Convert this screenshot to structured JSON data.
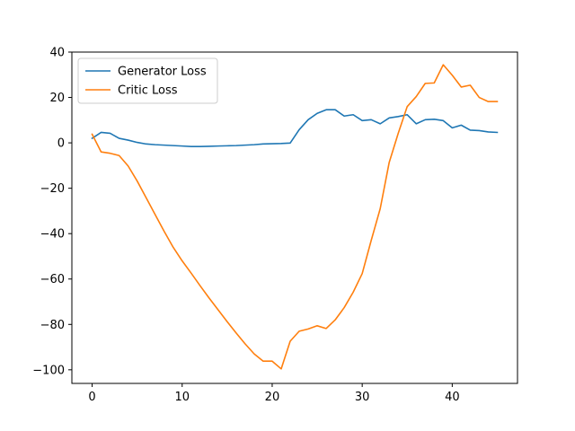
{
  "chart_data": {
    "type": "line",
    "title": "",
    "xlabel": "",
    "ylabel": "",
    "xlim": [
      -2.25,
      47.25
    ],
    "ylim": [
      -106,
      40
    ],
    "xticks": [
      0,
      10,
      20,
      30,
      40
    ],
    "yticks": [
      40,
      20,
      0,
      -20,
      -40,
      -60,
      -80,
      -100
    ],
    "grid": false,
    "legend_position": "top-left",
    "series": [
      {
        "name": "Generator Loss",
        "color": "#1f77b4",
        "x": [
          0,
          1,
          2,
          3,
          4,
          5,
          6,
          7,
          8,
          9,
          10,
          11,
          12,
          13,
          14,
          15,
          16,
          17,
          18,
          19,
          20,
          21,
          22,
          23,
          24,
          25,
          26,
          27,
          28,
          29,
          30,
          31,
          32,
          33,
          34,
          35,
          36,
          37,
          38,
          39,
          40,
          41,
          42,
          43,
          44,
          45
        ],
        "values": [
          2.0,
          4.6,
          4.2,
          2.0,
          1.2,
          0.2,
          -0.5,
          -0.8,
          -1.0,
          -1.2,
          -1.4,
          -1.6,
          -1.6,
          -1.5,
          -1.4,
          -1.3,
          -1.2,
          -1.0,
          -0.8,
          -0.5,
          -0.4,
          -0.3,
          -0.1,
          5.8,
          10.2,
          13.0,
          14.6,
          14.6,
          11.8,
          12.4,
          9.8,
          10.2,
          8.4,
          11.0,
          11.6,
          12.4,
          8.4,
          10.2,
          10.4,
          9.8,
          6.6,
          7.8,
          5.6,
          5.4,
          4.8,
          4.6
        ]
      },
      {
        "name": "Critic Loss",
        "color": "#ff7f0e",
        "x": [
          0,
          1,
          2,
          3,
          4,
          5,
          6,
          7,
          8,
          9,
          10,
          11,
          12,
          13,
          14,
          15,
          16,
          17,
          18,
          19,
          20,
          21,
          22,
          23,
          24,
          25,
          26,
          27,
          28,
          29,
          30,
          31,
          32,
          33,
          34,
          35,
          36,
          37,
          38,
          39,
          40,
          41,
          42,
          43,
          44,
          45
        ],
        "values": [
          3.8,
          -4.0,
          -4.6,
          -5.6,
          -10.2,
          -16.8,
          -24.2,
          -31.6,
          -39.0,
          -46.0,
          -52.0,
          -57.4,
          -63.0,
          -68.4,
          -73.6,
          -78.8,
          -83.8,
          -88.6,
          -93.0,
          -96.2,
          -96.2,
          -99.6,
          -87.4,
          -83.0,
          -82.0,
          -80.6,
          -81.8,
          -78.0,
          -72.6,
          -65.8,
          -57.6,
          -43.0,
          -29.0,
          -8.6,
          4.2,
          16.0,
          20.4,
          26.2,
          26.4,
          34.4,
          29.8,
          24.6,
          25.4,
          20.0,
          18.2,
          18.2
        ]
      }
    ]
  }
}
